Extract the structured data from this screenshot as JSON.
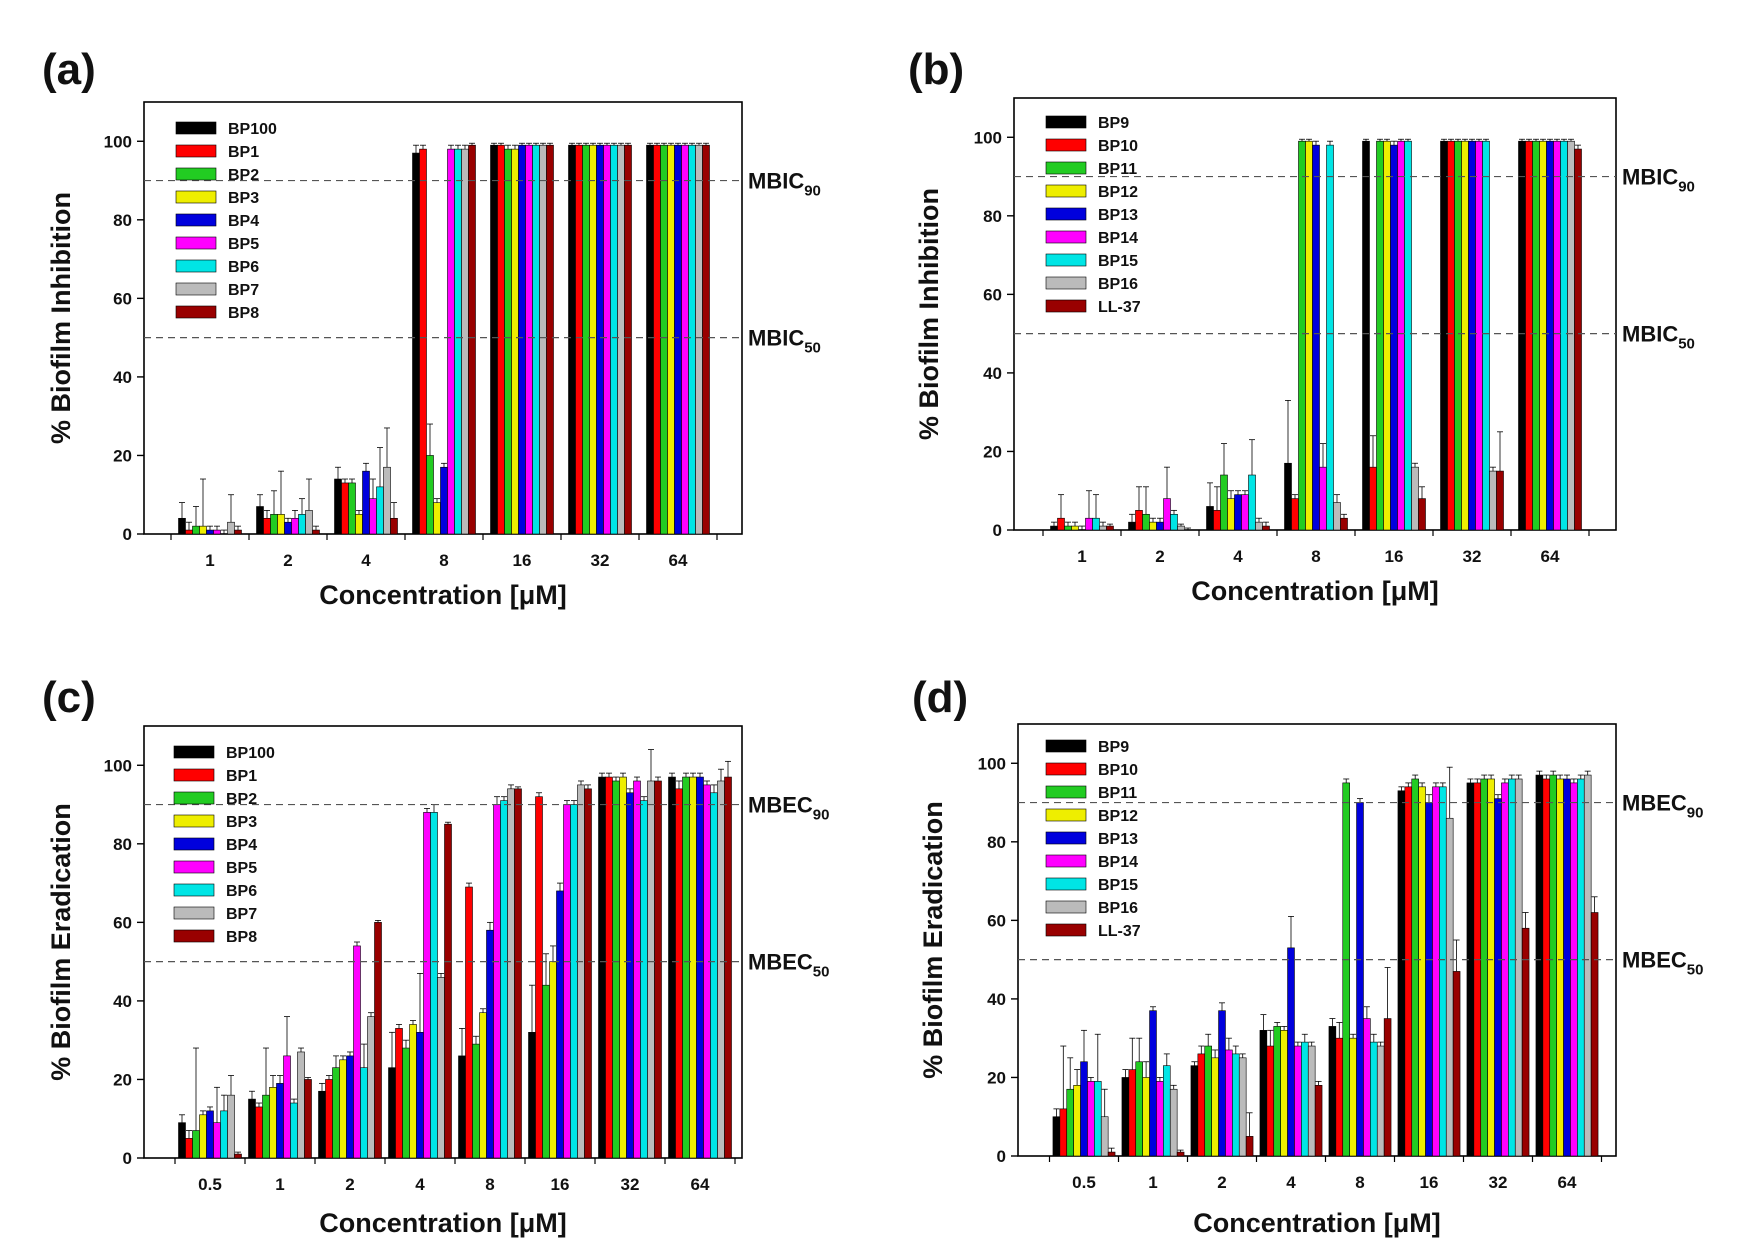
{
  "chart_data": [
    {
      "panel": "(a)",
      "type": "bar",
      "ylabel": "% Biofilm Inhibition",
      "xlabel": "Concentration [μM]",
      "ylim": [
        0,
        110
      ],
      "yticks": [
        0,
        20,
        40,
        60,
        80,
        100
      ],
      "categories": [
        "1",
        "2",
        "4",
        "8",
        "16",
        "32",
        "64"
      ],
      "thresholds": [
        {
          "value": 90,
          "label": "MBIC",
          "sub": "90"
        },
        {
          "value": 50,
          "label": "MBIC",
          "sub": "50"
        }
      ],
      "legend_position": "top-left",
      "series": [
        {
          "name": "BP100",
          "color": "#000000",
          "values": [
            4,
            7,
            14,
            97,
            99,
            99,
            99
          ],
          "errors": [
            4,
            3,
            3,
            2,
            0.5,
            0.5,
            0.5
          ]
        },
        {
          "name": "BP1",
          "color": "#ff0000",
          "values": [
            1,
            4,
            13,
            98,
            99,
            99,
            99
          ],
          "errors": [
            2,
            2,
            1,
            1,
            0.5,
            0.5,
            0.5
          ]
        },
        {
          "name": "BP2",
          "color": "#22cc22",
          "values": [
            2,
            5,
            13,
            20,
            98,
            99,
            99
          ],
          "errors": [
            5,
            6,
            1,
            8,
            1,
            0.5,
            0.5
          ]
        },
        {
          "name": "BP3",
          "color": "#eeee00",
          "values": [
            2,
            5,
            5,
            8,
            98,
            99,
            99
          ],
          "errors": [
            12,
            11,
            1,
            1,
            1,
            0.5,
            0.5
          ]
        },
        {
          "name": "BP4",
          "color": "#0000dd",
          "values": [
            1,
            3,
            16,
            17,
            99,
            99,
            99
          ],
          "errors": [
            1,
            1,
            2,
            1,
            0.5,
            0.5,
            0.5
          ]
        },
        {
          "name": "BP5",
          "color": "#ff00ff",
          "values": [
            1,
            4,
            9,
            98,
            99,
            99,
            99
          ],
          "errors": [
            1,
            2,
            5,
            1,
            0.5,
            0.5,
            0.5
          ]
        },
        {
          "name": "BP6",
          "color": "#00e5e5",
          "values": [
            0,
            5,
            12,
            98,
            99,
            99,
            99
          ],
          "errors": [
            1,
            4,
            10,
            1,
            0.5,
            0.5,
            0.5
          ]
        },
        {
          "name": "BP7",
          "color": "#bbbbbb",
          "values": [
            3,
            6,
            17,
            98,
            99,
            99,
            99
          ],
          "errors": [
            7,
            8,
            10,
            1,
            0.5,
            0.5,
            0.5
          ]
        },
        {
          "name": "BP8",
          "color": "#990000",
          "values": [
            1,
            1,
            4,
            99,
            99,
            99,
            99
          ],
          "errors": [
            1,
            1,
            4,
            0.5,
            0.5,
            0.5,
            0.5
          ]
        }
      ]
    },
    {
      "panel": "(b)",
      "type": "bar",
      "ylabel": "% Biofilm Inhibition",
      "xlabel": "Concentration [μM]",
      "ylim": [
        0,
        110
      ],
      "yticks": [
        0,
        20,
        40,
        60,
        80,
        100
      ],
      "categories": [
        "1",
        "2",
        "4",
        "8",
        "16",
        "32",
        "64"
      ],
      "thresholds": [
        {
          "value": 90,
          "label": "MBIC",
          "sub": "90"
        },
        {
          "value": 50,
          "label": "MBIC",
          "sub": "50"
        }
      ],
      "legend_position": "top-left",
      "series": [
        {
          "name": "BP9",
          "color": "#000000",
          "values": [
            1,
            2,
            6,
            17,
            99,
            99,
            99
          ],
          "errors": [
            1,
            2,
            6,
            16,
            0.5,
            0.5,
            0.5
          ]
        },
        {
          "name": "BP10",
          "color": "#ff0000",
          "values": [
            3,
            5,
            5,
            8,
            16,
            99,
            99
          ],
          "errors": [
            6,
            6,
            6,
            1,
            8,
            0.5,
            0.5
          ]
        },
        {
          "name": "BP11",
          "color": "#22cc22",
          "values": [
            1,
            4,
            14,
            99,
            99,
            99,
            99
          ],
          "errors": [
            1,
            7,
            8,
            0.5,
            0.5,
            0.5,
            0.5
          ]
        },
        {
          "name": "BP12",
          "color": "#eeee00",
          "values": [
            1,
            2,
            8,
            99,
            99,
            99,
            99
          ],
          "errors": [
            1,
            1,
            2,
            0.5,
            0.5,
            0.5,
            0.5
          ]
        },
        {
          "name": "BP13",
          "color": "#0000dd",
          "values": [
            0,
            2,
            9,
            98,
            98,
            99,
            99
          ],
          "errors": [
            1,
            1,
            1,
            1,
            1,
            0.5,
            0.5
          ]
        },
        {
          "name": "BP14",
          "color": "#ff00ff",
          "values": [
            3,
            8,
            9,
            16,
            99,
            99,
            99
          ],
          "errors": [
            7,
            8,
            1,
            6,
            0.5,
            0.5,
            0.5
          ]
        },
        {
          "name": "BP15",
          "color": "#00e5e5",
          "values": [
            3,
            4,
            14,
            98,
            99,
            99,
            99
          ],
          "errors": [
            6,
            1,
            9,
            1,
            0.5,
            0.5,
            0.5
          ]
        },
        {
          "name": "BP16",
          "color": "#bbbbbb",
          "values": [
            1,
            1,
            2,
            7,
            16,
            15,
            99
          ],
          "errors": [
            1,
            0.5,
            1,
            2,
            1,
            1,
            0.5
          ]
        },
        {
          "name": "LL-37",
          "color": "#990000",
          "values": [
            1,
            0,
            1,
            3,
            8,
            15,
            97
          ],
          "errors": [
            0.5,
            0.5,
            1,
            1,
            3,
            10,
            1
          ]
        }
      ]
    },
    {
      "panel": "(c)",
      "type": "bar",
      "ylabel": "% Biofilm Eradication",
      "xlabel": "Concentration [μM]",
      "ylim": [
        0,
        110
      ],
      "yticks": [
        0,
        20,
        40,
        60,
        80,
        100
      ],
      "categories": [
        "0.5",
        "1",
        "2",
        "4",
        "8",
        "16",
        "32",
        "64"
      ],
      "thresholds": [
        {
          "value": 90,
          "label": "MBEC",
          "sub": "90"
        },
        {
          "value": 50,
          "label": "MBEC",
          "sub": "50"
        }
      ],
      "legend_position": "top-left",
      "series": [
        {
          "name": "BP100",
          "color": "#000000",
          "values": [
            9,
            15,
            17,
            23,
            26,
            32,
            97,
            97
          ],
          "errors": [
            2,
            2,
            2,
            9,
            7,
            12,
            1,
            1
          ]
        },
        {
          "name": "BP1",
          "color": "#ff0000",
          "values": [
            5,
            13,
            20,
            33,
            69,
            92,
            97,
            94
          ],
          "errors": [
            2,
            1,
            1,
            1,
            1,
            1,
            1,
            2
          ]
        },
        {
          "name": "BP2",
          "color": "#22cc22",
          "values": [
            7,
            16,
            23,
            28,
            29,
            44,
            96,
            97
          ],
          "errors": [
            21,
            12,
            3,
            2,
            2,
            8,
            1,
            1
          ]
        },
        {
          "name": "BP3",
          "color": "#eeee00",
          "values": [
            11,
            18,
            25,
            34,
            37,
            50,
            97,
            97
          ],
          "errors": [
            1,
            3,
            1,
            1,
            1,
            4,
            1,
            1
          ]
        },
        {
          "name": "BP4",
          "color": "#0000dd",
          "values": [
            12,
            19,
            26,
            32,
            58,
            68,
            93,
            97
          ],
          "errors": [
            1,
            2,
            1,
            15,
            2,
            2,
            1,
            1
          ]
        },
        {
          "name": "BP5",
          "color": "#ff00ff",
          "values": [
            9,
            26,
            54,
            88,
            90,
            90,
            96,
            95
          ],
          "errors": [
            9,
            10,
            1,
            1,
            2,
            1,
            1,
            1
          ]
        },
        {
          "name": "BP6",
          "color": "#00e5e5",
          "values": [
            12,
            14,
            23,
            88,
            91,
            90,
            91,
            93
          ],
          "errors": [
            4,
            1,
            6,
            2,
            1,
            1,
            1,
            2
          ]
        },
        {
          "name": "BP7",
          "color": "#bbbbbb",
          "values": [
            16,
            27,
            36,
            46,
            94,
            95,
            96,
            96
          ],
          "errors": [
            5,
            1,
            1,
            1,
            1,
            1,
            8,
            3
          ]
        },
        {
          "name": "BP8",
          "color": "#990000",
          "values": [
            1,
            20,
            60,
            85,
            94,
            94,
            96,
            97
          ],
          "errors": [
            0.5,
            0.5,
            0.5,
            0.5,
            0.5,
            1,
            1,
            4
          ]
        }
      ]
    },
    {
      "panel": "(d)",
      "type": "bar",
      "ylabel": "% Biofilm Eradication",
      "xlabel": "Concentration [μM]",
      "ylim": [
        0,
        110
      ],
      "yticks": [
        0,
        20,
        40,
        60,
        80,
        100
      ],
      "categories": [
        "0.5",
        "1",
        "2",
        "4",
        "8",
        "16",
        "32",
        "64"
      ],
      "thresholds": [
        {
          "value": 90,
          "label": "MBEC",
          "sub": "90"
        },
        {
          "value": 50,
          "label": "MBEC",
          "sub": "50"
        }
      ],
      "legend_position": "top-left",
      "series": [
        {
          "name": "BP9",
          "color": "#000000",
          "values": [
            10,
            20,
            23,
            32,
            33,
            93,
            95,
            97
          ],
          "errors": [
            2,
            2,
            1,
            4,
            2,
            1,
            1,
            1
          ]
        },
        {
          "name": "BP10",
          "color": "#ff0000",
          "values": [
            12,
            22,
            26,
            28,
            30,
            94,
            95,
            96
          ],
          "errors": [
            16,
            8,
            2,
            4,
            4,
            1,
            1,
            1
          ]
        },
        {
          "name": "BP11",
          "color": "#22cc22",
          "values": [
            17,
            24,
            28,
            33,
            95,
            96,
            96,
            97
          ],
          "errors": [
            8,
            6,
            3,
            1,
            1,
            1,
            1,
            1
          ]
        },
        {
          "name": "BP12",
          "color": "#eeee00",
          "values": [
            18,
            20,
            25,
            32,
            30,
            94,
            96,
            96
          ],
          "errors": [
            4,
            4,
            2,
            1,
            1,
            1,
            1,
            1
          ]
        },
        {
          "name": "BP13",
          "color": "#0000dd",
          "values": [
            24,
            37,
            37,
            53,
            90,
            90,
            91,
            96
          ],
          "errors": [
            8,
            1,
            2,
            8,
            1,
            2,
            1,
            1
          ]
        },
        {
          "name": "BP14",
          "color": "#ff00ff",
          "values": [
            19,
            19,
            27,
            28,
            35,
            94,
            95,
            95
          ],
          "errors": [
            1,
            1,
            3,
            1,
            3,
            1,
            1,
            1
          ]
        },
        {
          "name": "BP15",
          "color": "#00e5e5",
          "values": [
            19,
            23,
            26,
            29,
            29,
            94,
            96,
            96
          ],
          "errors": [
            12,
            3,
            2,
            2,
            2,
            1,
            1,
            1
          ]
        },
        {
          "name": "BP16",
          "color": "#bbbbbb",
          "values": [
            10,
            17,
            25,
            28,
            28,
            86,
            96,
            97
          ],
          "errors": [
            7,
            1,
            1,
            1,
            1,
            13,
            1,
            1
          ]
        },
        {
          "name": "LL-37",
          "color": "#990000",
          "values": [
            1,
            1,
            5,
            18,
            35,
            47,
            58,
            62
          ],
          "errors": [
            1,
            0.5,
            6,
            1,
            13,
            8,
            4,
            4
          ]
        }
      ]
    }
  ]
}
